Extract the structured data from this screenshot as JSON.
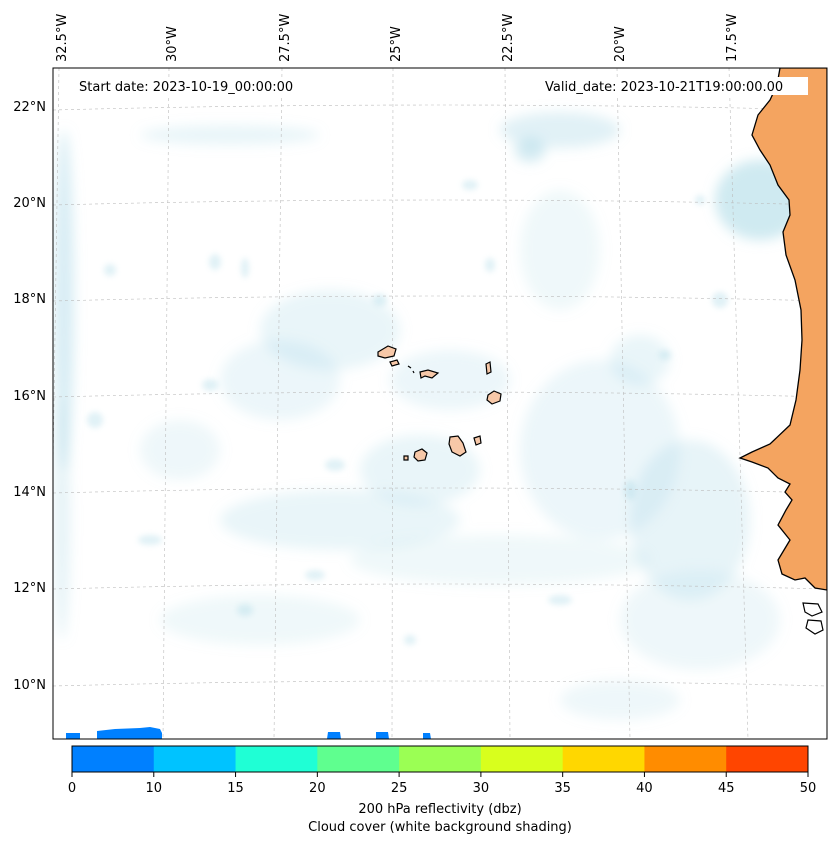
{
  "map": {
    "start_date_label": "Start date: 2023-10-19_00:00:00",
    "valid_date_label": "Valid_date: 2023-10-21T19:00:00.00",
    "lat_labels": [
      "22°N",
      "20°N",
      "18°N",
      "16°N",
      "14°N",
      "12°N",
      "10°N"
    ],
    "lon_labels": [
      "32.5°W",
      "30°W",
      "27.5°W",
      "25°W",
      "22.5°W",
      "20°W",
      "17.5°W"
    ],
    "land_color": "#f4a460",
    "cloud_color": "#a8d8e6"
  },
  "colorbar": {
    "ticks": [
      "0",
      "5",
      "10",
      "15",
      "20",
      "25",
      "30",
      "35",
      "40",
      "45",
      "50"
    ],
    "colors": [
      "#0080ff",
      "#00c3ff",
      "#1fffd5",
      "#5fff8f",
      "#9bff54",
      "#d8ff1d",
      "#ffd700",
      "#ff8c00",
      "#ff4500"
    ],
    "label": "200 hPa reflectivity (dbz)",
    "sublabel": "Cloud cover (white background shading)"
  }
}
